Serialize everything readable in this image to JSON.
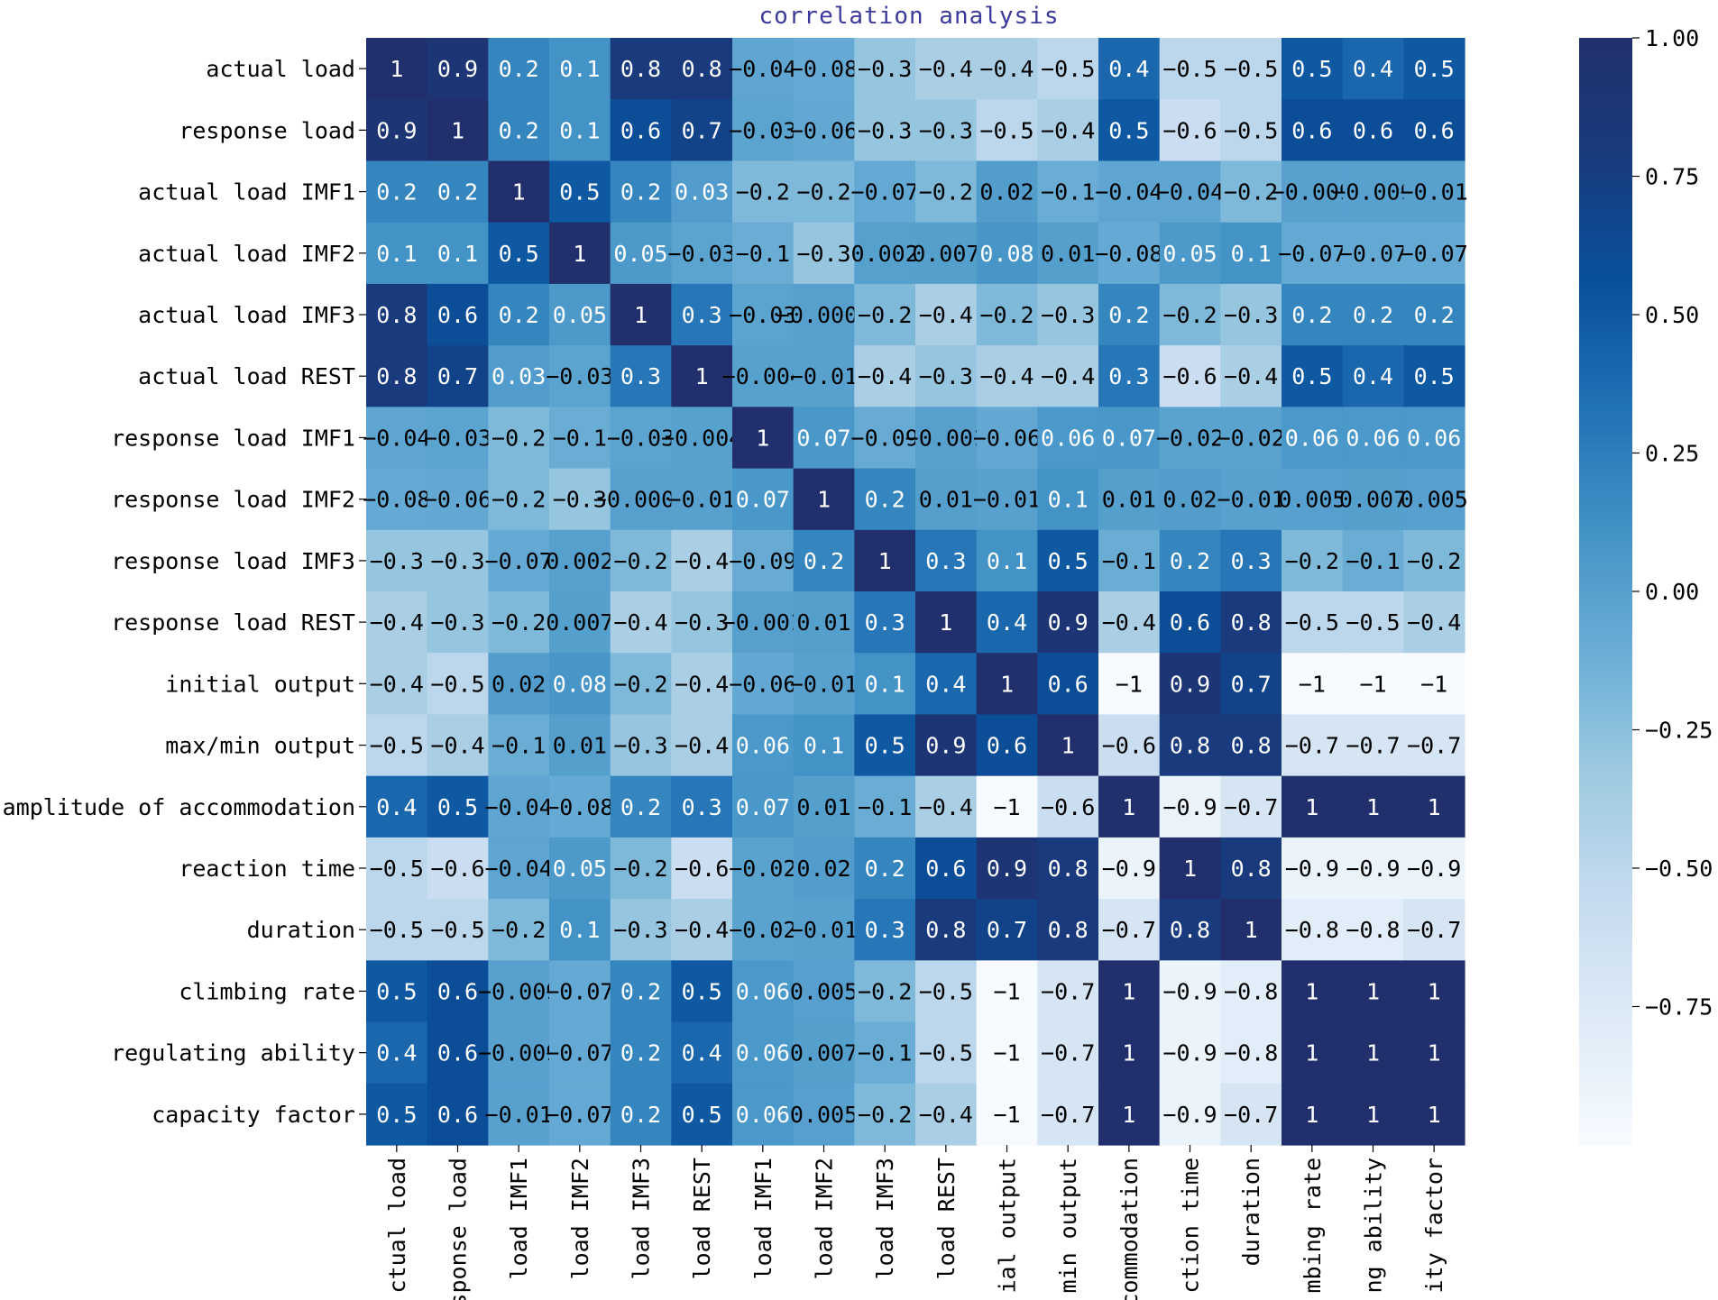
{
  "chart_data": {
    "type": "heatmap",
    "title": "correlation analysis",
    "row_labels": [
      "actual load",
      "response load",
      "actual load IMF1",
      "actual load IMF2",
      "actual load IMF3",
      "actual load REST",
      "response load IMF1",
      "response load IMF2",
      "response load IMF3",
      "response load REST",
      "initial output",
      "max/min output",
      "amplitude of accommodation",
      "reaction time",
      "duration",
      "climbing rate",
      "regulating ability",
      "capacity factor"
    ],
    "column_labels_visible": [
      "ctual load",
      "sponse load",
      "load IMF1",
      "load IMF2",
      "load IMF3",
      "load REST",
      "load IMF1",
      "load IMF2",
      "load IMF3",
      "load REST",
      "ial output",
      "min output",
      "commodation",
      "ction time",
      "duration",
      "mbing rate",
      "ng ability",
      "ity factor"
    ],
    "matrix_labels": [
      [
        "1",
        "0.9",
        "0.2",
        "0.1",
        "0.8",
        "0.8",
        "-0.04",
        "-0.08",
        "-0.3",
        "-0.4",
        "-0.4",
        "-0.5",
        "0.4",
        "-0.5",
        "-0.5",
        "0.5",
        "0.4",
        "0.5"
      ],
      [
        "0.9",
        "1",
        "0.2",
        "0.1",
        "0.6",
        "0.7",
        "-0.03",
        "-0.06",
        "-0.3",
        "-0.3",
        "-0.5",
        "-0.4",
        "0.5",
        "-0.6",
        "-0.5",
        "0.6",
        "0.6",
        "0.6"
      ],
      [
        "0.2",
        "0.2",
        "1",
        "0.5",
        "0.2",
        "0.03",
        "-0.2",
        "-0.2",
        "-0.07",
        "-0.2",
        "0.02",
        "-0.1",
        "-0.04",
        "-0.04",
        "-0.2",
        "-0.009",
        "-0.009",
        "-0.01"
      ],
      [
        "0.1",
        "0.1",
        "0.5",
        "1",
        "0.05",
        "-0.03",
        "-0.1",
        "-0.3",
        "0.002",
        "0.007",
        "0.08",
        "0.01",
        "-0.08",
        "0.05",
        "0.1",
        "-0.07",
        "-0.07",
        "-0.07"
      ],
      [
        "0.8",
        "0.6",
        "0.2",
        "0.05",
        "1",
        "0.3",
        "-0.03",
        "-0.0004",
        "-0.2",
        "-0.4",
        "-0.2",
        "-0.3",
        "0.2",
        "-0.2",
        "-0.3",
        "0.2",
        "0.2",
        "0.2"
      ],
      [
        "0.8",
        "0.7",
        "0.03",
        "-0.03",
        "0.3",
        "1",
        "-0.004",
        "-0.01",
        "-0.4",
        "-0.3",
        "-0.4",
        "-0.4",
        "0.3",
        "-0.6",
        "-0.4",
        "0.5",
        "0.4",
        "0.5"
      ],
      [
        "-0.04",
        "-0.03",
        "-0.2",
        "-0.1",
        "-0.03",
        "-0.004",
        "1",
        "0.07",
        "-0.09",
        "-0.001",
        "-0.06",
        "0.06",
        "0.07",
        "-0.02",
        "-0.02",
        "0.06",
        "0.06",
        "0.06"
      ],
      [
        "-0.08",
        "-0.06",
        "-0.2",
        "-0.3",
        "-0.0004",
        "-0.01",
        "0.07",
        "1",
        "0.2",
        "0.01",
        "-0.01",
        "0.1",
        "0.01",
        "0.02",
        "-0.01",
        "0.005",
        "0.007",
        "0.005"
      ],
      [
        "-0.3",
        "-0.3",
        "-0.07",
        "0.002",
        "-0.2",
        "-0.4",
        "-0.09",
        "0.2",
        "1",
        "0.3",
        "0.1",
        "0.5",
        "-0.1",
        "0.2",
        "0.3",
        "-0.2",
        "-0.1",
        "-0.2"
      ],
      [
        "-0.4",
        "-0.3",
        "-0.2",
        "0.007",
        "-0.4",
        "-0.3",
        "-0.001",
        "0.01",
        "0.3",
        "1",
        "0.4",
        "0.9",
        "-0.4",
        "0.6",
        "0.8",
        "-0.5",
        "-0.5",
        "-0.4"
      ],
      [
        "-0.4",
        "-0.5",
        "0.02",
        "0.08",
        "-0.2",
        "-0.4",
        "-0.06",
        "-0.01",
        "0.1",
        "0.4",
        "1",
        "0.6",
        "-1",
        "0.9",
        "0.7",
        "-1",
        "-1",
        "-1"
      ],
      [
        "-0.5",
        "-0.4",
        "-0.1",
        "0.01",
        "-0.3",
        "-0.4",
        "0.06",
        "0.1",
        "0.5",
        "0.9",
        "0.6",
        "1",
        "-0.6",
        "0.8",
        "0.8",
        "-0.7",
        "-0.7",
        "-0.7"
      ],
      [
        "0.4",
        "0.5",
        "-0.04",
        "-0.08",
        "0.2",
        "0.3",
        "0.07",
        "0.01",
        "-0.1",
        "-0.4",
        "-1",
        "-0.6",
        "1",
        "-0.9",
        "-0.7",
        "1",
        "1",
        "1"
      ],
      [
        "-0.5",
        "-0.6",
        "-0.04",
        "0.05",
        "-0.2",
        "-0.6",
        "-0.02",
        "0.02",
        "0.2",
        "0.6",
        "0.9",
        "0.8",
        "-0.9",
        "1",
        "0.8",
        "-0.9",
        "-0.9",
        "-0.9"
      ],
      [
        "-0.5",
        "-0.5",
        "-0.2",
        "0.1",
        "-0.3",
        "-0.4",
        "-0.02",
        "-0.01",
        "0.3",
        "0.8",
        "0.7",
        "0.8",
        "-0.7",
        "0.8",
        "1",
        "-0.8",
        "-0.8",
        "-0.7"
      ],
      [
        "0.5",
        "0.6",
        "-0.009",
        "-0.07",
        "0.2",
        "0.5",
        "0.06",
        "0.005",
        "-0.2",
        "-0.5",
        "-1",
        "-0.7",
        "1",
        "-0.9",
        "-0.8",
        "1",
        "1",
        "1"
      ],
      [
        "0.4",
        "0.6",
        "-0.009",
        "-0.07",
        "0.2",
        "0.4",
        "0.06",
        "0.007",
        "-0.1",
        "-0.5",
        "-1",
        "-0.7",
        "1",
        "-0.9",
        "-0.8",
        "1",
        "1",
        "1"
      ],
      [
        "0.5",
        "0.6",
        "-0.01",
        "-0.07",
        "0.2",
        "0.5",
        "0.06",
        "0.005",
        "-0.2",
        "-0.4",
        "-1",
        "-0.7",
        "1",
        "-0.9",
        "-0.7",
        "1",
        "1",
        "1"
      ]
    ],
    "colorbar": {
      "min": -1,
      "max": 1,
      "ticks": [
        "1.00",
        "0.75",
        "0.50",
        "0.25",
        "0.00",
        "-0.25",
        "-0.50",
        "-0.75"
      ],
      "tick_values": [
        1.0,
        0.75,
        0.5,
        0.25,
        0.0,
        -0.25,
        -0.5,
        -0.75
      ],
      "colormap": "Blues",
      "color_stops": [
        "#f7fbff",
        "#deebf7",
        "#c6dbef",
        "#9ecae1",
        "#6baed6",
        "#4292c6",
        "#2171b5",
        "#08519c",
        "#183b7e",
        "#21306c"
      ]
    }
  }
}
